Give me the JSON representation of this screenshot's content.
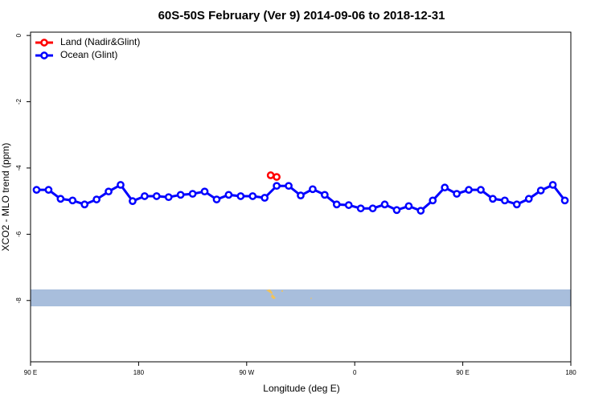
{
  "chart_data": {
    "type": "line",
    "title": "60S-50S February (Ver 9)   2014-09-06 to 2018-12-31",
    "xlabel": "Longitude (deg E)",
    "ylabel": "XCO2 - MLO trend (ppm)",
    "xlim": [
      90,
      540
    ],
    "xticks": [
      {
        "value": 90,
        "label": "90 E"
      },
      {
        "value": 180,
        "label": "180"
      },
      {
        "value": 270,
        "label": "90 W"
      },
      {
        "value": 360,
        "label": "0"
      },
      {
        "value": 450,
        "label": "90 E"
      },
      {
        "value": 540,
        "label": "180"
      }
    ],
    "ylim": [
      -9.85,
      0.1
    ],
    "yticks": [
      0,
      -2,
      -4,
      -6,
      -8
    ],
    "legend": "top-left",
    "series": [
      {
        "name": "Land (Nadir&Glint)",
        "color": "#ff0000",
        "x": [
          290,
          295
        ],
        "values": [
          -4.22,
          -4.27
        ]
      },
      {
        "name": "Ocean (Glint)",
        "color": "#0000ff",
        "x": [
          95,
          105,
          115,
          125,
          135,
          145,
          155,
          165,
          175,
          185,
          195,
          205,
          215,
          225,
          235,
          245,
          255,
          265,
          275,
          285,
          295,
          305,
          315,
          325,
          335,
          345,
          355,
          365,
          375,
          385,
          395,
          405,
          415,
          425,
          435,
          445,
          455,
          465,
          475,
          485,
          495,
          505,
          515,
          525,
          535
        ],
        "values": [
          -4.66,
          -4.66,
          -4.93,
          -4.98,
          -5.1,
          -4.95,
          -4.71,
          -4.51,
          -5.0,
          -4.85,
          -4.85,
          -4.88,
          -4.81,
          -4.78,
          -4.71,
          -4.95,
          -4.81,
          -4.85,
          -4.85,
          -4.9,
          -4.54,
          -4.54,
          -4.83,
          -4.64,
          -4.81,
          -5.1,
          -5.12,
          -5.22,
          -5.22,
          -5.1,
          -5.27,
          -5.15,
          -5.29,
          -4.98,
          -4.59,
          -4.78,
          -4.66,
          -4.66,
          -4.93,
          -4.98,
          -5.1,
          -4.93,
          -4.68,
          -4.51,
          -4.98
        ]
      }
    ]
  }
}
